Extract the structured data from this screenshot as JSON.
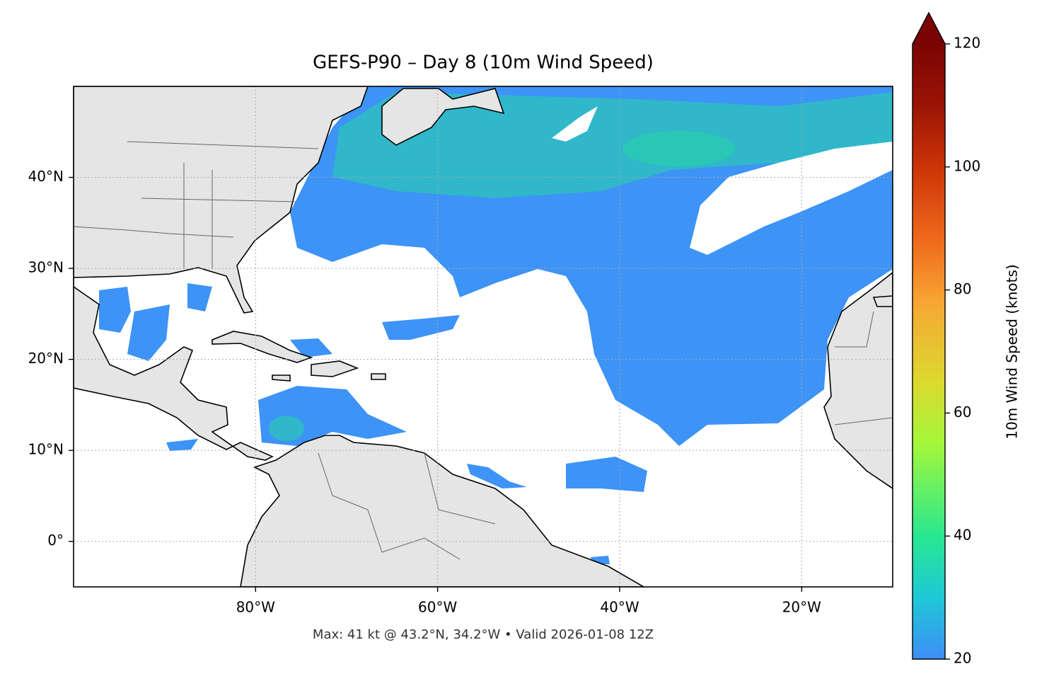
{
  "chart_data": {
    "type": "map",
    "title": "GEFS-P90 – Day 8 (10m Wind Speed)",
    "footer": "Max: 41 kt @ 43.2°N, 34.2°W • Valid 2026-01-08 12Z",
    "colorbar_label": "10m Wind Speed (knots)",
    "xlim": [
      -100,
      -10
    ],
    "ylim": [
      -5,
      50
    ],
    "xticks": [
      {
        "value": -80,
        "label": "80°W"
      },
      {
        "value": -60,
        "label": "60°W"
      },
      {
        "value": -40,
        "label": "40°W"
      },
      {
        "value": -20,
        "label": "20°W"
      }
    ],
    "yticks": [
      {
        "value": 0,
        "label": "0°"
      },
      {
        "value": 10,
        "label": "10°N"
      },
      {
        "value": 20,
        "label": "20°N"
      },
      {
        "value": 30,
        "label": "30°N"
      },
      {
        "value": 40,
        "label": "40°N"
      }
    ],
    "grid": true,
    "clim": [
      20,
      120
    ],
    "cticks": [
      20,
      40,
      60,
      80,
      100,
      120
    ],
    "extend": "max",
    "colormap": [
      {
        "value": 20,
        "color": "#3e8ef7"
      },
      {
        "value": 30,
        "color": "#1ec8d6"
      },
      {
        "value": 40,
        "color": "#28e890"
      },
      {
        "value": 55,
        "color": "#a4f73a"
      },
      {
        "value": 65,
        "color": "#dcd92f"
      },
      {
        "value": 78,
        "color": "#f8a634"
      },
      {
        "value": 88,
        "color": "#ef6a1c"
      },
      {
        "value": 100,
        "color": "#cc3408"
      },
      {
        "value": 110,
        "color": "#9a1404"
      },
      {
        "value": 120,
        "color": "#7a0403"
      }
    ]
  }
}
